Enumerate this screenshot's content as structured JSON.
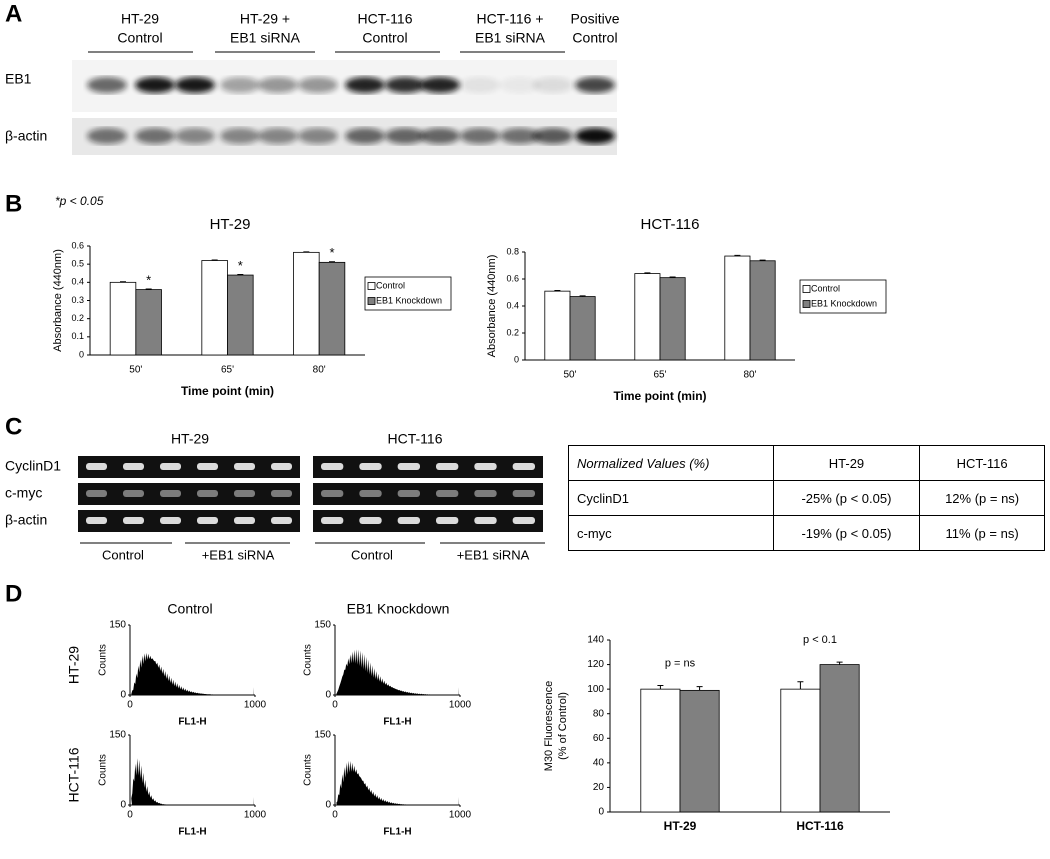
{
  "panel_letters": [
    "A",
    "B",
    "C",
    "D"
  ],
  "blot": {
    "groups": [
      [
        "HT-29",
        "Control"
      ],
      [
        "HT-29 +",
        "EB1 siRNA"
      ],
      [
        "HCT-116",
        "Control"
      ],
      [
        "HCT-116 +",
        "EB1 siRNA"
      ],
      [
        "Positive",
        "Control"
      ]
    ],
    "rows": [
      "EB1",
      "β-actin"
    ]
  },
  "significance_note": "*p < 0.05",
  "chart_data": [
    {
      "type": "bar",
      "title": "HT-29",
      "categories": [
        "50'",
        "65'",
        "80'"
      ],
      "series": [
        {
          "name": "Control",
          "color": "#ffffff",
          "values": [
            0.4,
            0.52,
            0.565
          ],
          "errors": [
            0.003,
            0.003,
            0.003
          ]
        },
        {
          "name": "EB1 Knockdown",
          "color": "#808080",
          "values": [
            0.36,
            0.44,
            0.51
          ],
          "errors": [
            0.003,
            0.003,
            0.003
          ],
          "annotations": [
            "*",
            "*",
            "*"
          ]
        }
      ],
      "xlabel": "Time point (min)",
      "ylabel": [
        "Absorbance (440nm)"
      ],
      "ylim": [
        0,
        0.6
      ],
      "yticks": [
        0,
        0.1,
        0.2,
        0.3,
        0.4,
        0.5,
        0.6
      ],
      "legend": "right"
    },
    {
      "type": "bar",
      "title": "HCT-116",
      "categories": [
        "50'",
        "65'",
        "80'"
      ],
      "series": [
        {
          "name": "Control",
          "color": "#ffffff",
          "values": [
            0.51,
            0.64,
            0.77
          ],
          "errors": [
            0.005,
            0.005,
            0.005
          ]
        },
        {
          "name": "EB1 Knockdown",
          "color": "#808080",
          "values": [
            0.47,
            0.61,
            0.735
          ],
          "errors": [
            0.005,
            0.005,
            0.005
          ]
        }
      ],
      "xlabel": "Time point (min)",
      "ylabel": [
        "Absorbance (440nm)"
      ],
      "ylim": [
        0,
        0.8
      ],
      "yticks": [
        0,
        0.2,
        0.4,
        0.6,
        0.8
      ],
      "legend": "right"
    },
    {
      "type": "bar",
      "categories": [
        "HT-29",
        "HCT-116"
      ],
      "series": [
        {
          "name": "Control",
          "color": "#ffffff",
          "values": [
            100,
            100
          ],
          "errors": [
            3,
            6
          ]
        },
        {
          "name": "EB1 Knockdown",
          "color": "#808080",
          "values": [
            99,
            120
          ],
          "errors": [
            3,
            2
          ]
        }
      ],
      "group_annotations": [
        "p = ns",
        "p < 0.1"
      ],
      "ylabel": [
        "M30 Fluorescence",
        "(% of Control)"
      ],
      "ylim": [
        0,
        140
      ],
      "yticks": [
        0,
        20,
        40,
        60,
        80,
        100,
        120,
        140
      ]
    }
  ],
  "gel": {
    "titles": [
      "HT-29",
      "HCT-116"
    ],
    "rows": [
      "CyclinD1",
      "c-myc",
      "β-actin"
    ],
    "groups": [
      "Control",
      "+EB1 siRNA"
    ]
  },
  "table": {
    "header": [
      "Normalized Values (%)",
      "HT-29",
      "HCT-116"
    ],
    "rows": [
      [
        "CyclinD1",
        "-25% (p < 0.05)",
        "12% (p = ns)"
      ],
      [
        "c-myc",
        "-19% (p < 0.05)",
        "11% (p = ns)"
      ]
    ]
  },
  "flow": {
    "columns": [
      "Control",
      "EB1 Knockdown"
    ],
    "rows": [
      "HT-29",
      "HCT-116"
    ],
    "ylabel": "Counts",
    "xlabel": "FL1-H",
    "yticks": [
      0,
      150
    ],
    "xticks": [
      0,
      1000
    ]
  }
}
